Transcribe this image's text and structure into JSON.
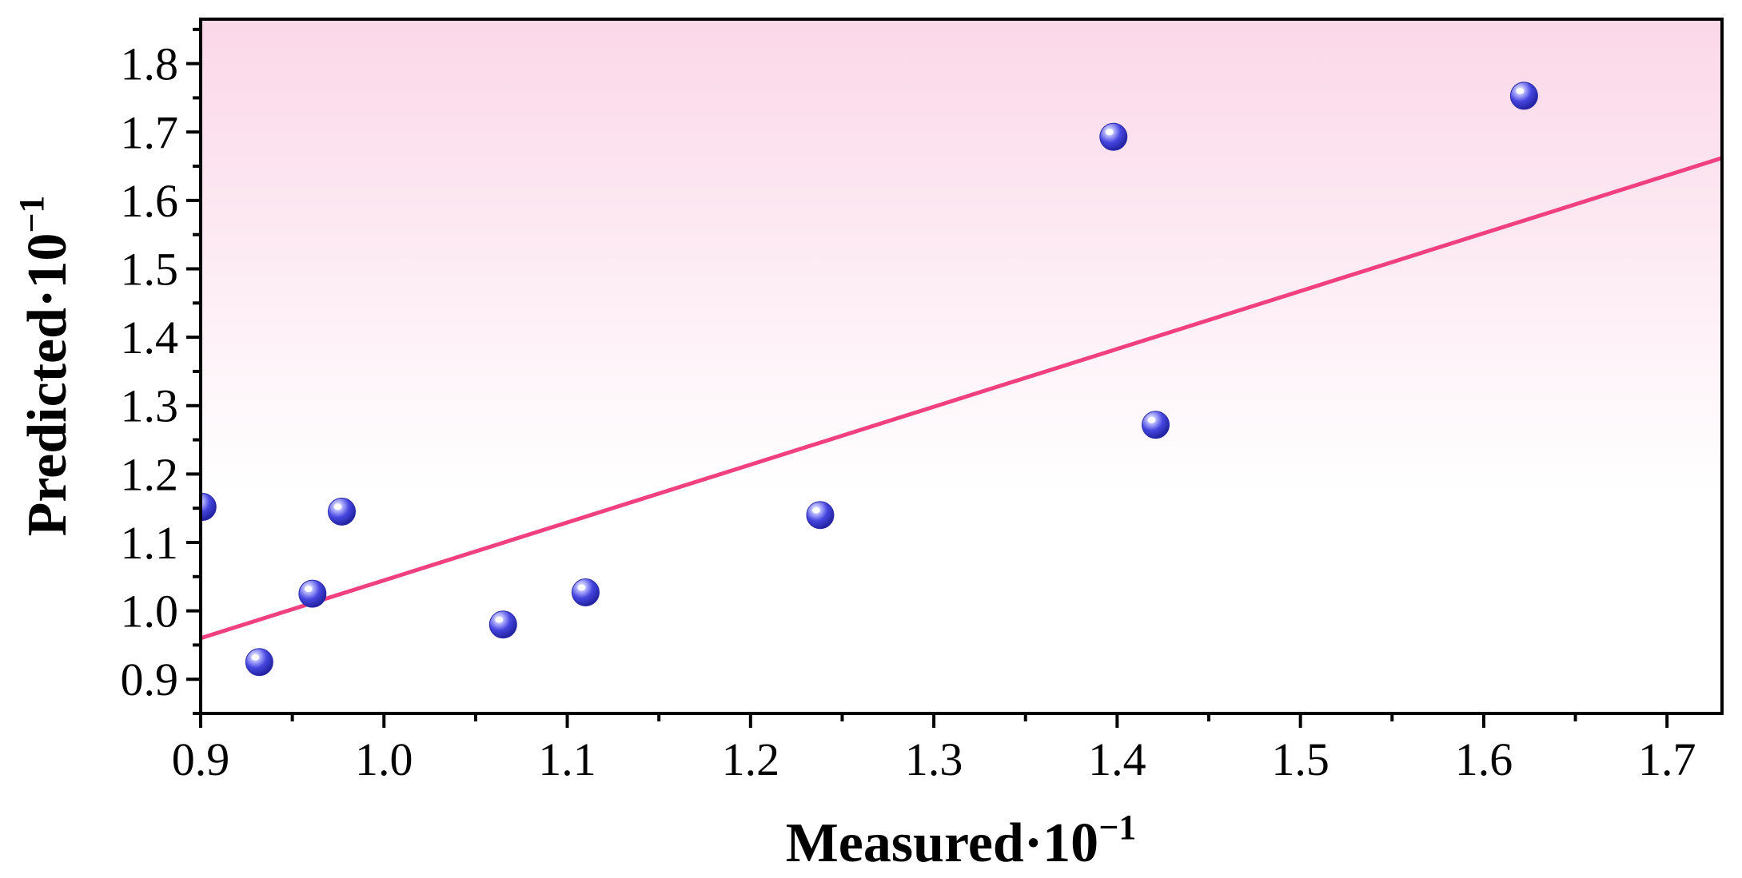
{
  "chart_data": {
    "type": "scatter",
    "xlabel": "Measured·10",
    "xlabel_exponent": "−1",
    "ylabel": "Predicted·10",
    "ylabel_exponent": "−1",
    "xlim": [
      0.9,
      1.73
    ],
    "ylim": [
      0.85,
      1.865
    ],
    "xticks": [
      "0.9",
      "1.0",
      "1.1",
      "1.2",
      "1.3",
      "1.4",
      "1.5",
      "1.6",
      "1.7"
    ],
    "yticks": [
      "0.9",
      "1.0",
      "1.1",
      "1.2",
      "1.3",
      "1.4",
      "1.5",
      "1.6",
      "1.7",
      "1.8"
    ],
    "series": [
      {
        "name": "points",
        "x": [
          0.901,
          0.932,
          0.961,
          0.977,
          1.065,
          1.11,
          1.238,
          1.398,
          1.421,
          1.622
        ],
        "y": [
          1.152,
          0.925,
          1.025,
          1.145,
          0.98,
          1.027,
          1.14,
          1.693,
          1.272,
          1.753
        ]
      }
    ],
    "fit_line": {
      "x": [
        0.9,
        1.73
      ],
      "y": [
        0.96,
        1.662
      ]
    },
    "grid": false,
    "colors": {
      "points": "#3a3ad6",
      "fit": "#f0407f",
      "bg_top": "#fbd7e8"
    }
  }
}
